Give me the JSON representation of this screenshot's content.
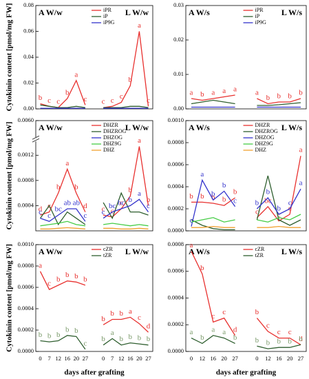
{
  "chart_data": [
    {
      "type": "line",
      "group_labels": [
        "A W/w",
        "L W/w"
      ],
      "ylabel": "Cytokinin content [pmol/mg FW]",
      "ylim": [
        0,
        0.08
      ],
      "yticks": [
        {
          "value": 0,
          "label": "0.00"
        },
        {
          "value": 0.02,
          "label": "0.02"
        },
        {
          "value": 0.04,
          "label": "0.04"
        },
        {
          "value": 0.06,
          "label": "0.06"
        },
        {
          "value": 0.08,
          "label": "0.08"
        }
      ],
      "series": [
        {
          "name": "iPR",
          "color": "#e8302e",
          "values": [
            0.004,
            0.002,
            0.001,
            0.008,
            0.022,
            0.003,
            null,
            0.001,
            0.002,
            0.005,
            0.018,
            0.06,
            0.002
          ],
          "letters": [
            "b",
            "c",
            "c",
            "b",
            "a",
            "c",
            null,
            "c",
            "c",
            "c",
            "b",
            "a",
            "c"
          ]
        },
        {
          "name": "iP",
          "color": "#2e5e2e",
          "values": [
            0.003,
            0.002,
            0.001,
            0.001,
            0.002,
            0.001,
            null,
            0.001,
            0.001,
            0.001,
            0.002,
            0.002,
            0.001
          ]
        },
        {
          "name": "iP9G",
          "color": "#3333cc",
          "values": [
            0.0005,
            0.0005,
            0.0005,
            0.0005,
            0.0005,
            0.0005,
            null,
            0.0005,
            0.0005,
            0.0005,
            0.0005,
            0.0005,
            0.0005
          ]
        }
      ]
    },
    {
      "type": "line",
      "group_labels": [
        "A W/s",
        "L W/s"
      ],
      "ylim": [
        0,
        0.03
      ],
      "yticks": [
        {
          "value": 0,
          "label": "0.00"
        },
        {
          "value": 0.01,
          "label": "0.01"
        },
        {
          "value": 0.02,
          "label": "0.02"
        },
        {
          "value": 0.03,
          "label": "0.03"
        }
      ],
      "series": [
        {
          "name": "iPR",
          "color": "#e8302e",
          "values": [
            0.003,
            0.0025,
            0.003,
            0.0035,
            0.004,
            null,
            0.003,
            0.0015,
            0.002,
            0.002,
            0.003
          ],
          "letters": [
            "a",
            "b",
            "a",
            "a",
            "a",
            null,
            "a",
            "b",
            "b",
            "b",
            "b"
          ]
        },
        {
          "name": "iP",
          "color": "#2e5e2e",
          "values": [
            0.0015,
            0.002,
            0.0025,
            0.002,
            0.0015,
            null,
            0.001,
            0.001,
            0.0012,
            0.0015,
            0.0018
          ]
        },
        {
          "name": "iP9G",
          "color": "#3333cc",
          "values": [
            0.0005,
            0.0005,
            0.0005,
            0.0005,
            0.0005,
            null,
            0.0005,
            0.0005,
            0.0005,
            0.0005,
            0.0005
          ]
        }
      ]
    },
    {
      "type": "line",
      "group_labels": [
        "A W/w",
        "L W/w"
      ],
      "ylabel": "Cytokinin content [pmol/mg FW]",
      "ylim": [
        0,
        0.006
      ],
      "ybreak": [
        0.0014,
        0.0058
      ],
      "yticks": [
        {
          "value": 0.0004,
          "label": "0.0004"
        },
        {
          "value": 0.0008,
          "label": "0.0008"
        },
        {
          "value": 0.0012,
          "label": "0.0012"
        },
        {
          "value": 0.006,
          "label": "0.0060"
        }
      ],
      "series": [
        {
          "name": "DHZR",
          "color": "#e8302e",
          "values": [
            0.00025,
            0.0003,
            0.0006,
            0.00098,
            0.0006,
            0.0003,
            null,
            0.00025,
            0.00022,
            0.00035,
            0.00055,
            0.00134,
            0.0004
          ],
          "letters": [
            "d",
            "c",
            "b",
            "a",
            "b",
            "d",
            null,
            "c",
            "c",
            "c",
            "b",
            "a",
            "b"
          ]
        },
        {
          "name": "DHZROG",
          "color": "#2e5e2e",
          "values": [
            0.0002,
            0.0004,
            0.0001,
            0.0003,
            0.0002,
            0.0001,
            null,
            0.00045,
            0.0002,
            0.0006,
            0.0003,
            0.0003,
            0.00025
          ]
        },
        {
          "name": "DHZOG",
          "color": "#3333cc",
          "values": [
            0.0002,
            0.00015,
            0.00025,
            0.00035,
            0.00035,
            0.00015,
            null,
            0.0002,
            0.0003,
            0.00035,
            0.0004,
            0.0005,
            0.0003
          ],
          "letters": [
            "c",
            "c",
            "bc",
            "ab",
            "ab",
            "c",
            null,
            "c",
            "bc",
            "bc",
            "b",
            "a",
            "c"
          ]
        },
        {
          "name": "DHZ9G",
          "color": "#44cc44",
          "values": [
            8e-05,
            0.0001,
            0.00012,
            0.00015,
            0.0001,
            8e-05,
            null,
            0.0001,
            0.00012,
            0.0001,
            8e-05,
            0.0001,
            8e-05
          ]
        },
        {
          "name": "DHZ",
          "color": "#f0a030",
          "values": [
            3e-05,
            3e-05,
            4e-05,
            5e-05,
            4e-05,
            3e-05,
            null,
            4e-05,
            4e-05,
            3e-05,
            3e-05,
            4e-05,
            3e-05
          ]
        }
      ]
    },
    {
      "type": "line",
      "group_labels": [
        "A W/s",
        "L W/s"
      ],
      "ylim": [
        0,
        0.001
      ],
      "yticks": [
        {
          "value": 0,
          "label": "0.0000"
        },
        {
          "value": 0.0002,
          "label": "0.0002"
        },
        {
          "value": 0.0004,
          "label": "0.0004"
        },
        {
          "value": 0.0006,
          "label": "0.0006"
        },
        {
          "value": 0.0008,
          "label": "0.0008"
        },
        {
          "value": 0.001,
          "label": "0.0010"
        }
      ],
      "series": [
        {
          "name": "DHZR",
          "color": "#e8302e",
          "values": [
            0.00026,
            0.00026,
            0.00025,
            0.00023,
            0.0003,
            null,
            0.00012,
            0.00022,
            9e-05,
            0.00015,
            0.00068
          ],
          "letters": [
            "b",
            "b",
            "b",
            "b",
            "b",
            null,
            "c",
            "bc",
            "c",
            "c",
            "a"
          ]
        },
        {
          "name": "DHZROG",
          "color": "#2e5e2e",
          "values": [
            0.0001,
            5e-05,
            2e-05,
            1e-05,
            1e-05,
            null,
            0.0001,
            0.0005,
            0.0001,
            5e-05,
            0.0001
          ]
        },
        {
          "name": "DHZOG",
          "color": "#3333cc",
          "values": [
            4e-05,
            0.00046,
            0.00028,
            0.00036,
            0.00022,
            null,
            0.0002,
            0.0003,
            0.00015,
            0.0002,
            0.00038
          ],
          "letters": [
            "c",
            "a",
            "b",
            "b",
            "c",
            null,
            "b",
            "b",
            "b",
            "c",
            "a"
          ]
        },
        {
          "name": "DHZ9G",
          "color": "#44cc44",
          "values": [
            8e-05,
            0.0001,
            0.00012,
            8e-05,
            0.0001,
            null,
            0.0001,
            8e-05,
            0.00012,
            0.0001,
            0.00015
          ]
        },
        {
          "name": "DHZ",
          "color": "#f0a030",
          "values": [
            3e-05,
            3e-05,
            4e-05,
            3e-05,
            3e-05,
            null,
            3e-05,
            3e-05,
            4e-05,
            3e-05,
            3e-05
          ]
        }
      ]
    },
    {
      "type": "line",
      "group_labels": [
        "A W/w",
        "L W/w"
      ],
      "ylabel": "Cytokinin content [pmol/mg FW]",
      "xlabel": "days after grafting",
      "categories": [
        "0",
        "7",
        "12",
        "16",
        "20",
        "27",
        null,
        "0",
        "7",
        "12",
        "16",
        "20",
        "27"
      ],
      "ylim": [
        0,
        0.001
      ],
      "yticks": [
        {
          "value": 0,
          "label": "0.0000"
        },
        {
          "value": 0.0002,
          "label": "0.0002"
        },
        {
          "value": 0.0004,
          "label": "0.0004"
        },
        {
          "value": 0.0006,
          "label": "0.0006"
        },
        {
          "value": 0.0008,
          "label": "0.0008"
        },
        {
          "value": 0.001,
          "label": "0.0010"
        }
      ],
      "series": [
        {
          "name": "cZR",
          "color": "#e8302e",
          "values": [
            0.00075,
            0.00058,
            0.00062,
            0.00066,
            0.00065,
            0.00062,
            null,
            0.00025,
            0.0003,
            0.0003,
            0.00032,
            0.00026,
            0.00018
          ],
          "letters": [
            "a",
            "c",
            "b",
            "b",
            "b",
            "b",
            null,
            "b",
            "b",
            "b",
            "a",
            "c",
            "d"
          ]
        },
        {
          "name": "tZR",
          "color": "#2e5e2e",
          "letter_color": "#7a9a6a",
          "values": [
            0.0001,
            9e-05,
            0.0001,
            0.00015,
            0.00014,
            2e-05,
            null,
            6e-05,
            0.00012,
            6e-05,
            8e-05,
            7e-05,
            6e-05
          ],
          "letters": [
            "b",
            "b",
            "b",
            "b",
            "b",
            "c",
            null,
            "b",
            "a",
            "b",
            "b",
            "b",
            "b"
          ]
        }
      ]
    },
    {
      "type": "line",
      "group_labels": [
        "A W/s",
        "L W/s"
      ],
      "xlabel": "days after grafting",
      "categories": [
        "0",
        "12",
        "16",
        "20",
        "27",
        null,
        "0",
        "12",
        "16",
        "20",
        "27"
      ],
      "ylim": [
        0,
        0.0008
      ],
      "yticks": [
        {
          "value": 0,
          "label": "0.0000"
        },
        {
          "value": 0.0002,
          "label": "0.0002"
        },
        {
          "value": 0.0004,
          "label": "0.0004"
        },
        {
          "value": 0.0006,
          "label": "0.0006"
        },
        {
          "value": 0.0008,
          "label": "0.0008"
        }
      ],
      "series": [
        {
          "name": "cZR",
          "color": "#e8302e",
          "values": [
            0.00075,
            0.00058,
            0.00022,
            0.00025,
            0.00012,
            null,
            0.00025,
            0.00015,
            0.0001,
            0.0001,
            5e-05
          ],
          "letters": [
            "a",
            "b",
            "c",
            "c",
            "d",
            null,
            "b",
            "c",
            "c",
            "c",
            "d"
          ]
        },
        {
          "name": "tZR",
          "color": "#2e5e2e",
          "letter_color": "#7a9a6a",
          "values": [
            0.0001,
            6e-05,
            0.00012,
            0.0001,
            6e-05,
            null,
            4e-05,
            2e-05,
            3e-05,
            3e-05,
            5e-05
          ],
          "letters": [
            "a",
            "b",
            "a",
            "a",
            "b",
            null,
            "b",
            "b",
            "b",
            "b",
            "b"
          ]
        }
      ]
    }
  ]
}
